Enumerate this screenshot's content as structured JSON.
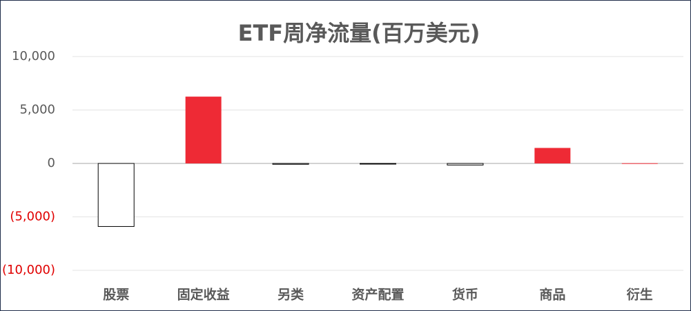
{
  "chart_data": {
    "type": "bar",
    "title": "ETF周净流量(百万美元)",
    "categories": [
      "股票",
      "固定收益",
      "另类",
      "资产配置",
      "货币",
      "商品",
      "衍生"
    ],
    "values": [
      -5900,
      6250,
      -80,
      -60,
      -150,
      1450,
      20
    ],
    "colors": [
      "#ffffff",
      "#ee2a35",
      "#ffffff",
      "#ffffff",
      "#ffffff",
      "#ee2a35",
      "#ee2a35"
    ],
    "edgecolors": [
      "#000000",
      "none",
      "#000000",
      "#000000",
      "#000000",
      "none",
      "none"
    ],
    "ylim": [
      -10000,
      10000
    ],
    "yticks": [
      {
        "value": -10000,
        "label": "(10,000)"
      },
      {
        "value": -5000,
        "label": "(5,000)"
      },
      0,
      {
        "value": 5000,
        "label": "5,000"
      },
      {
        "value": 10000,
        "label": "10,000"
      }
    ],
    "negative_tick_color": "#e00000",
    "grid": true
  }
}
